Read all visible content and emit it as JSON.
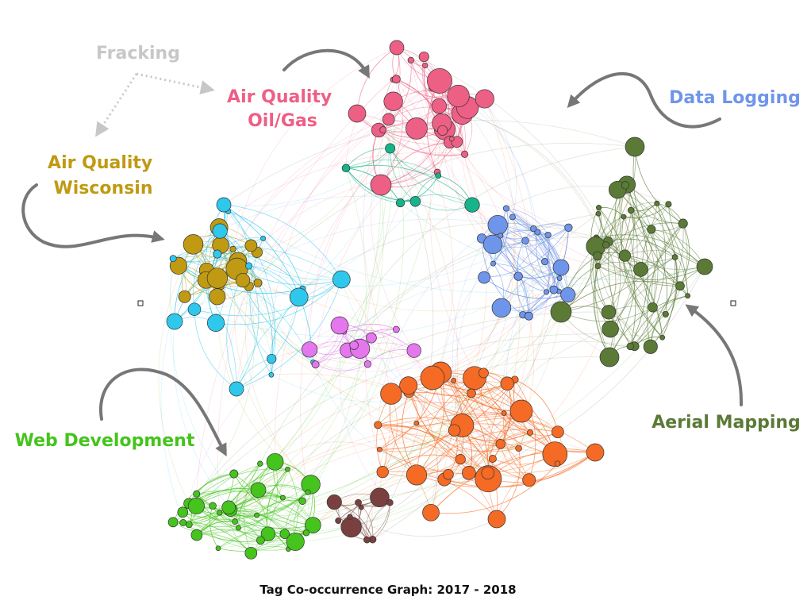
{
  "title": "Tag Co-occurrence Graph: 2017 - 2018",
  "colors": {
    "fracking": "#c7c7c7",
    "air_quality_oil_gas": "#ee5f85",
    "data_logging": "#6f95ea",
    "air_quality_wisconsin": "#bf9a12",
    "aerial_mapping": "#5a7a36",
    "web_development": "#44c41c",
    "cyan": "#2ec8ec",
    "teal": "#17b38a",
    "orange": "#f56a24",
    "brown": "#7a4040",
    "magenta": "#e476ee",
    "arrow": "#777777"
  },
  "clusters": [
    {
      "id": "fracking",
      "label": "Fracking"
    },
    {
      "id": "air_quality_oil_gas",
      "label_lines": [
        "Air Quality",
        "Oil/Gas"
      ]
    },
    {
      "id": "data_logging",
      "label": "Data Logging"
    },
    {
      "id": "air_quality_wisconsin",
      "label_lines": [
        "Air Quality",
        "Wisconsin"
      ]
    },
    {
      "id": "web_development",
      "label": "Web Development"
    },
    {
      "id": "aerial_mapping",
      "label": "Aerial Mapping"
    }
  ]
}
